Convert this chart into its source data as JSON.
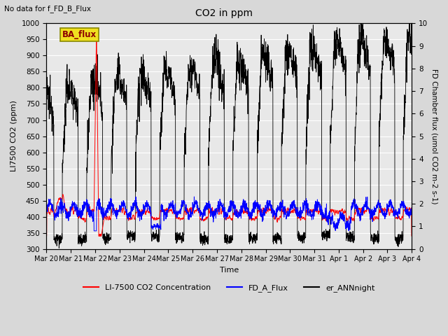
{
  "title": "CO2 in ppm",
  "top_left_text": "No data for f_FD_B_Flux",
  "legend_box_text": "BA_flux",
  "xlabel": "Time",
  "ylabel_left": "LI7500 CO2 (ppm)",
  "ylabel_right": "FD Chamber flux (umol CO2 m-2 s-1)",
  "ylim_left": [
    300,
    1000
  ],
  "ylim_right": [
    0.0,
    10.0
  ],
  "yticks_left": [
    300,
    350,
    400,
    450,
    500,
    550,
    600,
    650,
    700,
    750,
    800,
    850,
    900,
    950,
    1000
  ],
  "yticks_right": [
    0.0,
    1.0,
    2.0,
    3.0,
    4.0,
    5.0,
    6.0,
    7.0,
    8.0,
    9.0,
    10.0
  ],
  "facecolor": "#e8e8e8",
  "gridcolor": "white",
  "line_red": "red",
  "line_blue": "blue",
  "line_black": "black",
  "legend_entries": [
    "LI-7500 CO2 Concentration",
    "FD_A_Flux",
    "er_ANNnight"
  ],
  "x_tick_labels": [
    "Mar 20",
    "Mar 21",
    "Mar 22",
    "Mar 23",
    "Mar 24",
    "Mar 25",
    "Mar 26",
    "Mar 27",
    "Mar 28",
    "Mar 29",
    "Mar 30",
    "Mar 31",
    "Apr 1",
    "Apr 2",
    "Apr 3",
    "Apr 4"
  ],
  "n_points": 2160,
  "n_days": 15
}
